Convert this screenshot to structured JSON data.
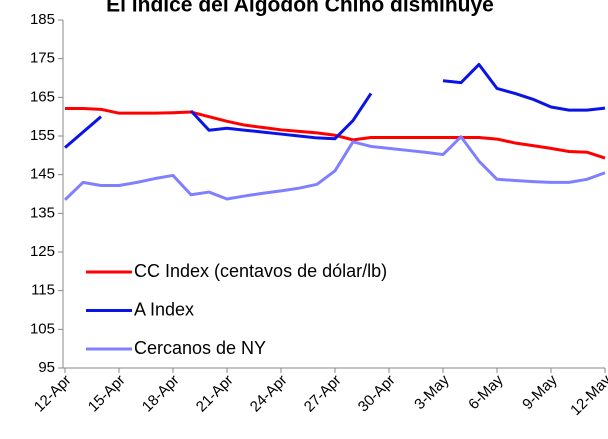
{
  "chart_data": {
    "type": "line",
    "title": "El índice del Algodón Chino disminuye",
    "categories": [
      "12-Apr",
      null,
      null,
      "15-Apr",
      null,
      null,
      "18-Apr",
      null,
      null,
      "21-Apr",
      null,
      null,
      "24-Apr",
      null,
      null,
      "27-Apr",
      null,
      null,
      "30-Apr",
      null,
      null,
      "3-May",
      null,
      null,
      "6-May",
      null,
      null,
      "9-May",
      null,
      null,
      "12-May"
    ],
    "series": [
      {
        "name": "CC Index (centavos de dólar/lb)",
        "color": "#ff0000",
        "values": [
          162.1,
          162.1,
          161.9,
          160.9,
          160.9,
          160.9,
          161,
          161.2,
          160,
          158.8,
          157.8,
          157.2,
          156.6,
          156.2,
          155.8,
          155.2,
          154,
          154.6,
          154.6,
          154.6,
          154.6,
          154.6,
          154.6,
          154.6,
          154.2,
          153.2,
          152.5,
          151.8,
          151,
          150.8,
          149.3
        ]
      },
      {
        "name": "A Index",
        "color": "#0a14e6",
        "values": [
          152,
          156,
          160,
          null,
          null,
          null,
          null,
          161.5,
          156.5,
          157,
          156.5,
          156,
          155.5,
          155,
          154.5,
          154.3,
          159,
          166,
          null,
          null,
          null,
          169.3,
          168.8,
          173.5,
          167.3,
          166,
          164.5,
          162.5,
          161.7,
          161.7,
          162.2
        ]
      },
      {
        "name": "Cercanos de NY",
        "color": "#8080ff",
        "values": [
          138.5,
          143,
          142.2,
          142.2,
          143,
          144,
          144.8,
          139.8,
          140.5,
          138.7,
          139.5,
          140.2,
          140.8,
          141.5,
          142.5,
          146,
          153.5,
          152.3,
          151.8,
          151.3,
          150.8,
          150.2,
          154.8,
          148.5,
          143.8,
          143.5,
          143.2,
          143,
          143,
          143.8,
          145.5
        ]
      }
    ],
    "ylim": [
      95,
      185
    ],
    "yticks": [
      95,
      105,
      115,
      125,
      135,
      145,
      155,
      165,
      175,
      185
    ],
    "grid": false,
    "legend": "lower left"
  }
}
